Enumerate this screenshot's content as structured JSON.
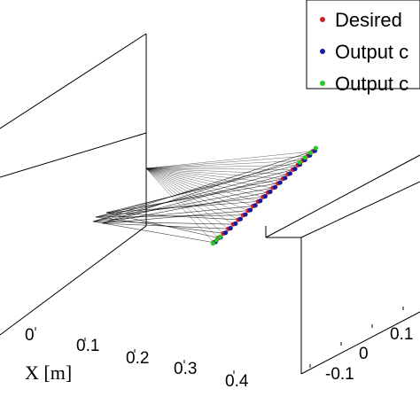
{
  "chart_data": {
    "type": "line",
    "projection": "3d",
    "xlabel": "X [m]",
    "x_ticks": [
      "0",
      "0.1",
      "0.2",
      "0.3",
      "0.4"
    ],
    "y_ticks": [
      "-0.1",
      "0",
      "0.1"
    ],
    "legend_position": "top-right",
    "legend": [
      {
        "label": "Desired",
        "color": "#cc2222"
      },
      {
        "label": "Output c",
        "color": "#1a1aa0"
      },
      {
        "label": "Output c",
        "color": "#22cc22"
      }
    ],
    "series": [
      {
        "name": "Desired",
        "color": "#cc2222",
        "points": [
          [
            0.402,
            0.19,
            0.43
          ],
          [
            0.402,
            0.176,
            0.41
          ],
          [
            0.402,
            0.162,
            0.39
          ],
          [
            0.402,
            0.148,
            0.37
          ],
          [
            0.402,
            0.134,
            0.35
          ],
          [
            0.402,
            0.12,
            0.33
          ],
          [
            0.402,
            0.106,
            0.31
          ],
          [
            0.402,
            0.092,
            0.29
          ],
          [
            0.402,
            0.078,
            0.27
          ],
          [
            0.402,
            0.064,
            0.25
          ],
          [
            0.402,
            0.05,
            0.23
          ],
          [
            0.402,
            0.036,
            0.21
          ],
          [
            0.402,
            0.022,
            0.19
          ],
          [
            0.402,
            0.008,
            0.17
          ],
          [
            0.402,
            -0.006,
            0.15
          ],
          [
            0.402,
            -0.02,
            0.13
          ],
          [
            0.402,
            -0.034,
            0.11
          ],
          [
            0.402,
            -0.048,
            0.09
          ],
          [
            0.402,
            -0.062,
            0.07
          ],
          [
            0.402,
            -0.076,
            0.05
          ],
          [
            0.402,
            -0.09,
            0.03
          ]
        ]
      },
      {
        "name": "Output c",
        "color": "#1a1aa0",
        "points": [
          [
            0.405,
            0.19,
            0.43
          ],
          [
            0.405,
            0.176,
            0.41
          ],
          [
            0.405,
            0.162,
            0.39
          ],
          [
            0.405,
            0.148,
            0.37
          ],
          [
            0.405,
            0.134,
            0.35
          ],
          [
            0.405,
            0.12,
            0.33
          ],
          [
            0.405,
            0.106,
            0.31
          ],
          [
            0.405,
            0.092,
            0.29
          ],
          [
            0.405,
            0.078,
            0.27
          ],
          [
            0.405,
            0.064,
            0.25
          ],
          [
            0.405,
            0.05,
            0.23
          ],
          [
            0.405,
            0.036,
            0.21
          ],
          [
            0.405,
            0.022,
            0.19
          ],
          [
            0.405,
            0.008,
            0.17
          ],
          [
            0.405,
            -0.006,
            0.15
          ],
          [
            0.405,
            -0.02,
            0.13
          ],
          [
            0.405,
            -0.034,
            0.11
          ],
          [
            0.405,
            -0.048,
            0.09
          ],
          [
            0.405,
            -0.062,
            0.07
          ],
          [
            0.405,
            -0.076,
            0.05
          ],
          [
            0.405,
            -0.09,
            0.03
          ]
        ]
      },
      {
        "name": "Output c",
        "color": "#22cc22",
        "points": [
          [
            0.4,
            0.195,
            0.44
          ],
          [
            0.4,
            0.18,
            0.42
          ],
          [
            0.4,
            0.165,
            0.4
          ],
          [
            0.4,
            0.15,
            0.38
          ],
          [
            0.4,
            -0.075,
            0.045
          ],
          [
            0.4,
            -0.085,
            0.03
          ],
          [
            0.4,
            -0.095,
            0.015
          ]
        ]
      }
    ]
  }
}
